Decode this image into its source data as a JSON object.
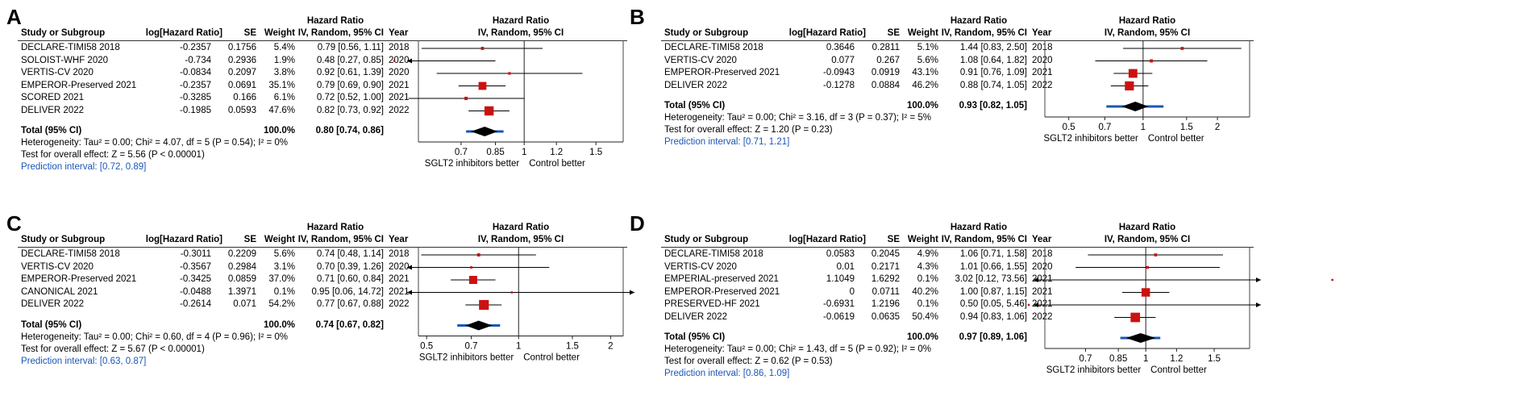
{
  "header": {
    "study": "Study or Subgroup",
    "logHR": "log[Hazard Ratio]",
    "se": "SE",
    "weight": "Weight",
    "hr_title": "Hazard Ratio",
    "hr_method": "IV, Random, 95% CI",
    "year": "Year",
    "plot_title": "Hazard Ratio",
    "plot_method": "IV, Random, 95% CI"
  },
  "colors": {
    "square": "#cc1111",
    "diamond": "#000000",
    "prediction": "#1a56b8",
    "ci": "#000000"
  },
  "chart_data": [
    {
      "type": "forest",
      "panel": "A",
      "xscale": "log",
      "ticks": [
        0.7,
        0.85,
        1,
        1.2,
        1.5
      ],
      "tick_labels": [
        "0.7",
        "0.85",
        "1",
        "1.2",
        "1.5"
      ],
      "xlim": [
        0.55,
        1.75
      ],
      "favours_left": "SGLT2 inhibitors better",
      "favours_right": "Control better",
      "studies": [
        {
          "name": "DECLARE-TIMI58 2018",
          "logHR": "-0.2357",
          "se": "0.1756",
          "weight": "5.4%",
          "ci_text": "0.79 [0.56, 1.11]",
          "year": "2018",
          "hr": 0.79,
          "lo": 0.56,
          "hi": 1.11,
          "w": 5.4
        },
        {
          "name": "SOLOIST-WHF 2020",
          "logHR": "-0.734",
          "se": "0.2936",
          "weight": "1.9%",
          "ci_text": "0.48 [0.27, 0.85]",
          "year": "2020",
          "hr": 0.48,
          "lo": 0.27,
          "hi": 0.85,
          "w": 1.9
        },
        {
          "name": "VERTIS-CV 2020",
          "logHR": "-0.0834",
          "se": "0.2097",
          "weight": "3.8%",
          "ci_text": "0.92 [0.61, 1.39]",
          "year": "2020",
          "hr": 0.92,
          "lo": 0.61,
          "hi": 1.39,
          "w": 3.8
        },
        {
          "name": "EMPEROR-Preserved 2021",
          "logHR": "-0.2357",
          "se": "0.0691",
          "weight": "35.1%",
          "ci_text": "0.79 [0.69, 0.90]",
          "year": "2021",
          "hr": 0.79,
          "lo": 0.69,
          "hi": 0.9,
          "w": 35.1
        },
        {
          "name": "SCORED 2021",
          "logHR": "-0.3285",
          "se": "0.166",
          "weight": "6.1%",
          "ci_text": "0.72 [0.52, 1.00]",
          "year": "2021",
          "hr": 0.72,
          "lo": 0.52,
          "hi": 1.0,
          "w": 6.1
        },
        {
          "name": "DELIVER 2022",
          "logHR": "-0.1985",
          "se": "0.0593",
          "weight": "47.6%",
          "ci_text": "0.82 [0.73, 0.92]",
          "year": "2022",
          "hr": 0.82,
          "lo": 0.73,
          "hi": 0.92,
          "w": 47.6
        }
      ],
      "total": {
        "label": "Total (95% CI)",
        "weight": "100.0%",
        "ci_text": "0.80 [0.74, 0.86]",
        "hr": 0.8,
        "lo": 0.74,
        "hi": 0.86
      },
      "prediction": {
        "lo": 0.72,
        "hi": 0.89
      },
      "heterogeneity": "Heterogeneity: Tau² = 0.00; Chi² = 4.07, df = 5 (P = 0.54); I² = 0%",
      "overall_test": "Test for overall effect: Z = 5.56 (P < 0.00001)",
      "prediction_text": "Prediction interval: [0.72, 0.89]"
    },
    {
      "type": "forest",
      "panel": "B",
      "xscale": "log",
      "ticks": [
        0.5,
        0.7,
        1,
        1.5,
        2
      ],
      "tick_labels": [
        "0.5",
        "0.7",
        "1",
        "1.5",
        "2"
      ],
      "xlim": [
        0.4,
        2.7
      ],
      "favours_left": "SGLT2 inhibitors better",
      "favours_right": "Control better",
      "studies": [
        {
          "name": "DECLARE-TIMI58 2018",
          "logHR": "0.3646",
          "se": "0.2811",
          "weight": "5.1%",
          "ci_text": "1.44 [0.83, 2.50]",
          "year": "2018",
          "hr": 1.44,
          "lo": 0.83,
          "hi": 2.5,
          "w": 5.1
        },
        {
          "name": "VERTIS-CV 2020",
          "logHR": "0.077",
          "se": "0.267",
          "weight": "5.6%",
          "ci_text": "1.08 [0.64, 1.82]",
          "year": "2020",
          "hr": 1.08,
          "lo": 0.64,
          "hi": 1.82,
          "w": 5.6
        },
        {
          "name": "EMPEROR-Preserved 2021",
          "logHR": "-0.0943",
          "se": "0.0919",
          "weight": "43.1%",
          "ci_text": "0.91 [0.76, 1.09]",
          "year": "2021",
          "hr": 0.91,
          "lo": 0.76,
          "hi": 1.09,
          "w": 43.1
        },
        {
          "name": "DELIVER 2022",
          "logHR": "-0.1278",
          "se": "0.0884",
          "weight": "46.2%",
          "ci_text": "0.88 [0.74, 1.05]",
          "year": "2022",
          "hr": 0.88,
          "lo": 0.74,
          "hi": 1.05,
          "w": 46.2
        }
      ],
      "total": {
        "label": "Total (95% CI)",
        "weight": "100.0%",
        "ci_text": "0.93 [0.82, 1.05]",
        "hr": 0.93,
        "lo": 0.82,
        "hi": 1.05
      },
      "prediction": {
        "lo": 0.71,
        "hi": 1.21
      },
      "heterogeneity": "Heterogeneity: Tau² = 0.00; Chi² = 3.16, df = 3 (P = 0.37); I² = 5%",
      "overall_test": "Test for overall effect: Z = 1.20 (P = 0.23)",
      "prediction_text": "Prediction interval: [0.71, 1.21]"
    },
    {
      "type": "forest",
      "panel": "C",
      "xscale": "log",
      "ticks": [
        0.5,
        0.7,
        1,
        1.5,
        2
      ],
      "tick_labels": [
        "0.5",
        "0.7",
        "1",
        "1.5",
        "2"
      ],
      "xlim": [
        0.47,
        2.2
      ],
      "favours_left": "SGLT2 inhibitors better",
      "favours_right": "Control better",
      "studies": [
        {
          "name": "DECLARE-TIMI58 2018",
          "logHR": "-0.3011",
          "se": "0.2209",
          "weight": "5.6%",
          "ci_text": "0.74 [0.48, 1.14]",
          "year": "2018",
          "hr": 0.74,
          "lo": 0.48,
          "hi": 1.14,
          "w": 5.6
        },
        {
          "name": "VERTIS-CV 2020",
          "logHR": "-0.3567",
          "se": "0.2984",
          "weight": "3.1%",
          "ci_text": "0.70 [0.39, 1.26]",
          "year": "2020",
          "hr": 0.7,
          "lo": 0.39,
          "hi": 1.26,
          "w": 3.1
        },
        {
          "name": "EMPEROR-Preserved 2021",
          "logHR": "-0.3425",
          "se": "0.0859",
          "weight": "37.0%",
          "ci_text": "0.71 [0.60, 0.84]",
          "year": "2021",
          "hr": 0.71,
          "lo": 0.6,
          "hi": 0.84,
          "w": 37.0
        },
        {
          "name": "CANONICAL 2021",
          "logHR": "-0.0488",
          "se": "1.3971",
          "weight": "0.1%",
          "ci_text": "0.95 [0.06, 14.72]",
          "year": "2021",
          "hr": 0.95,
          "lo": 0.06,
          "hi": 14.72,
          "w": 0.1
        },
        {
          "name": "DELIVER 2022",
          "logHR": "-0.2614",
          "se": "0.071",
          "weight": "54.2%",
          "ci_text": "0.77 [0.67, 0.88]",
          "year": "2022",
          "hr": 0.77,
          "lo": 0.67,
          "hi": 0.88,
          "w": 54.2
        }
      ],
      "total": {
        "label": "Total (95% CI)",
        "weight": "100.0%",
        "ci_text": "0.74 [0.67, 0.82]",
        "hr": 0.74,
        "lo": 0.67,
        "hi": 0.82
      },
      "prediction": {
        "lo": 0.63,
        "hi": 0.87
      },
      "heterogeneity": "Heterogeneity: Tau² = 0.00; Chi² = 0.60, df = 4 (P = 0.96); I² = 0%",
      "overall_test": "Test for overall effect: Z = 5.67 (P < 0.00001)",
      "prediction_text": "Prediction interval: [0.63, 0.87]"
    },
    {
      "type": "forest",
      "panel": "D",
      "xscale": "log",
      "ticks": [
        0.7,
        0.85,
        1,
        1.2,
        1.5
      ],
      "tick_labels": [
        "0.7",
        "0.85",
        "1",
        "1.2",
        "1.5"
      ],
      "xlim": [
        0.55,
        1.85
      ],
      "favours_left": "SGLT2 inhibitors better",
      "favours_right": "Control better",
      "studies": [
        {
          "name": "DECLARE-TIMI58 2018",
          "logHR": "0.0583",
          "se": "0.2045",
          "weight": "4.9%",
          "ci_text": "1.06 [0.71, 1.58]",
          "year": "2018",
          "hr": 1.06,
          "lo": 0.71,
          "hi": 1.58,
          "w": 4.9
        },
        {
          "name": "VERTIS-CV 2020",
          "logHR": "0.01",
          "se": "0.2171",
          "weight": "4.3%",
          "ci_text": "1.01 [0.66, 1.55]",
          "year": "2020",
          "hr": 1.01,
          "lo": 0.66,
          "hi": 1.55,
          "w": 4.3
        },
        {
          "name": "EMPERIAL-preserved 2021",
          "logHR": "1.1049",
          "se": "1.6292",
          "weight": "0.1%",
          "ci_text": "3.02 [0.12, 73.56]",
          "year": "2021",
          "hr": 3.02,
          "lo": 0.12,
          "hi": 73.56,
          "w": 0.1
        },
        {
          "name": "EMPEROR-Preserved 2021",
          "logHR": "0",
          "se": "0.0711",
          "weight": "40.2%",
          "ci_text": "1.00 [0.87, 1.15]",
          "year": "2021",
          "hr": 1.0,
          "lo": 0.87,
          "hi": 1.15,
          "w": 40.2
        },
        {
          "name": "PRESERVED-HF 2021",
          "logHR": "-0.6931",
          "se": "1.2196",
          "weight": "0.1%",
          "ci_text": "0.50 [0.05, 5.46]",
          "year": "2021",
          "hr": 0.5,
          "lo": 0.05,
          "hi": 5.46,
          "w": 0.1
        },
        {
          "name": "DELIVER 2022",
          "logHR": "-0.0619",
          "se": "0.0635",
          "weight": "50.4%",
          "ci_text": "0.94 [0.83, 1.06]",
          "year": "2022",
          "hr": 0.94,
          "lo": 0.83,
          "hi": 1.06,
          "w": 50.4
        }
      ],
      "total": {
        "label": "Total (95% CI)",
        "weight": "100.0%",
        "ci_text": "0.97 [0.89, 1.06]",
        "hr": 0.97,
        "lo": 0.89,
        "hi": 1.06
      },
      "prediction": {
        "lo": 0.86,
        "hi": 1.09
      },
      "heterogeneity": "Heterogeneity: Tau² = 0.00; Chi² = 1.43, df = 5 (P = 0.92); I² = 0%",
      "overall_test": "Test for overall effect: Z = 0.62 (P = 0.53)",
      "prediction_text": "Prediction interval: [0.86, 1.09]"
    }
  ]
}
